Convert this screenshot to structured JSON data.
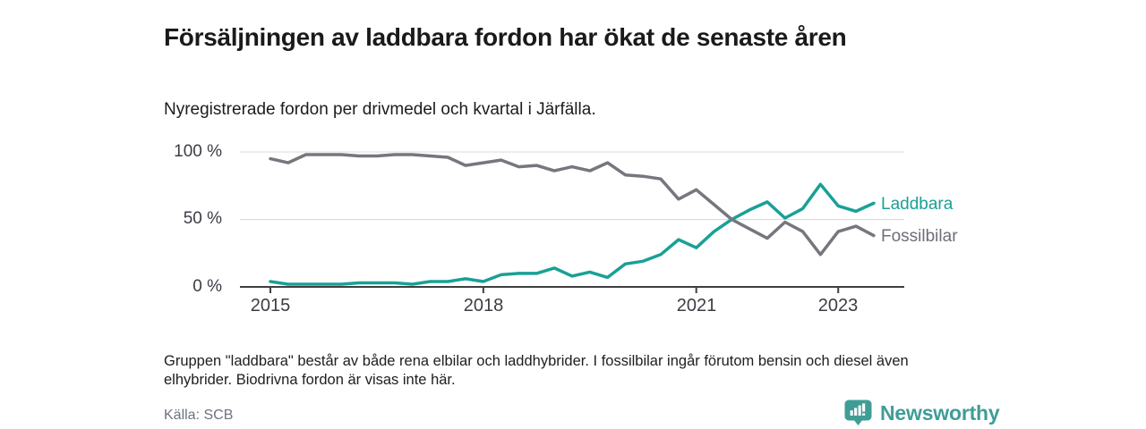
{
  "chart_data": {
    "type": "line",
    "title": "Försäljningen av laddbara fordon har ökat de senaste åren",
    "subtitle": "Nyregistrerade fordon per drivmedel och kvartal i Järfälla.",
    "ylabel": "",
    "xlabel": "",
    "ylim": [
      0,
      100
    ],
    "grid": "horizontal",
    "legend_position": "right-of-line-ends",
    "unit": "%",
    "categories": [
      "2015 Q1",
      "2015 Q2",
      "2015 Q3",
      "2015 Q4",
      "2016 Q1",
      "2016 Q2",
      "2016 Q3",
      "2016 Q4",
      "2017 Q1",
      "2017 Q2",
      "2017 Q3",
      "2017 Q4",
      "2018 Q1",
      "2018 Q2",
      "2018 Q3",
      "2018 Q4",
      "2019 Q1",
      "2019 Q2",
      "2019 Q3",
      "2019 Q4",
      "2020 Q1",
      "2020 Q2",
      "2020 Q3",
      "2020 Q4",
      "2021 Q1",
      "2021 Q2",
      "2021 Q3",
      "2021 Q4",
      "2022 Q1",
      "2022 Q2",
      "2022 Q3",
      "2022 Q4",
      "2023 Q1",
      "2023 Q2",
      "2023 Q3"
    ],
    "series": [
      {
        "name": "Laddbara",
        "color": "#1aa096",
        "values": [
          4,
          2,
          2,
          2,
          2,
          3,
          3,
          3,
          2,
          4,
          4,
          6,
          4,
          9,
          10,
          10,
          14,
          8,
          11,
          7,
          17,
          19,
          24,
          35,
          29,
          41,
          50,
          57,
          63,
          51,
          58,
          76,
          60,
          56,
          62
        ]
      },
      {
        "name": "Fossilbilar",
        "color": "#76767e",
        "values": [
          95,
          92,
          98,
          98,
          98,
          97,
          97,
          98,
          98,
          97,
          96,
          90,
          92,
          94,
          89,
          90,
          86,
          89,
          86,
          92,
          83,
          82,
          80,
          65,
          72,
          61,
          50,
          43,
          36,
          48,
          41,
          24,
          41,
          45,
          38
        ]
      }
    ],
    "y_ticks": [
      {
        "label": "100 %",
        "value": 100
      },
      {
        "label": "50 %",
        "value": 50
      },
      {
        "label": "0 %",
        "value": 0
      }
    ],
    "x_ticks": [
      {
        "label": "2015",
        "category_index": 0
      },
      {
        "label": "2018",
        "category_index": 12
      },
      {
        "label": "2021",
        "category_index": 24
      },
      {
        "label": "2023",
        "category_index": 32
      }
    ],
    "colors": {
      "gridline": "#d9d9d9",
      "axis": "#3f3f3f",
      "tick_label": "#3c3c44"
    }
  },
  "notes": {
    "text": "Gruppen \"laddbara\" består av både rena elbilar och laddhybrider. I fossilbilar ingår förutom bensin och diesel även elhybrider. Biodrivna fordon är visas inte här."
  },
  "source": {
    "label": "Källa: SCB"
  },
  "branding": {
    "name": "Newsworthy",
    "accent_color": "#3f9d96",
    "icon": "newsworthy-bar-chart-bubble-icon"
  }
}
